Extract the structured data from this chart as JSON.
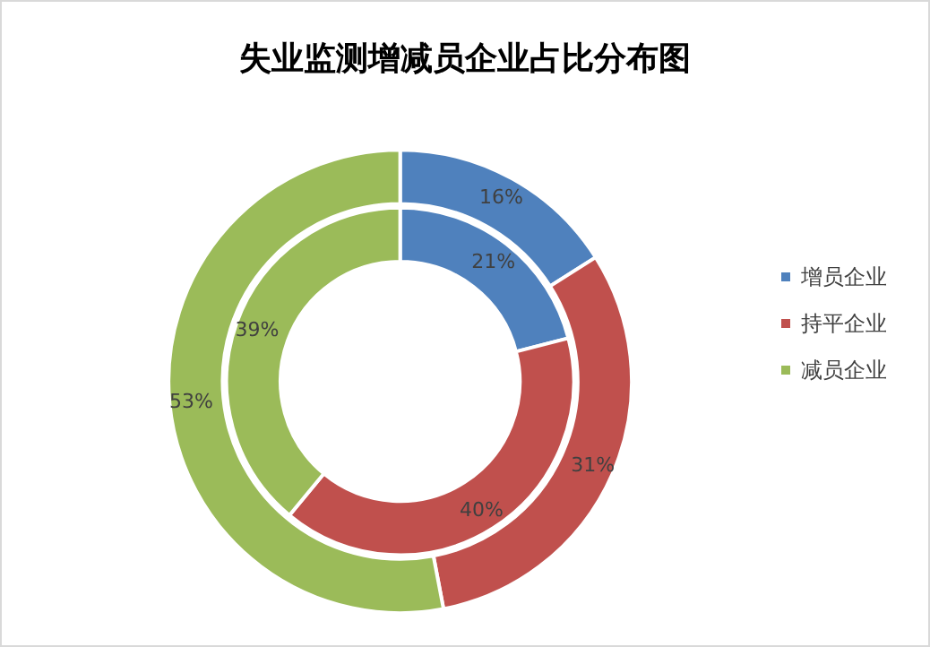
{
  "chart_data": {
    "type": "donut",
    "title": "失业监测增减员企业占比分布图",
    "categories": [
      "增员企业",
      "持平企业",
      "减员企业"
    ],
    "colors": [
      "#4f81bd",
      "#c0504d",
      "#9bbb59"
    ],
    "series": [
      {
        "values": [
          16,
          31,
          53
        ],
        "value_labels": [
          "16%",
          "31%",
          "53%"
        ]
      },
      {
        "values": [
          21,
          40,
          39
        ],
        "value_labels": [
          "21%",
          "40%",
          "39%"
        ]
      }
    ],
    "legend": "right"
  }
}
